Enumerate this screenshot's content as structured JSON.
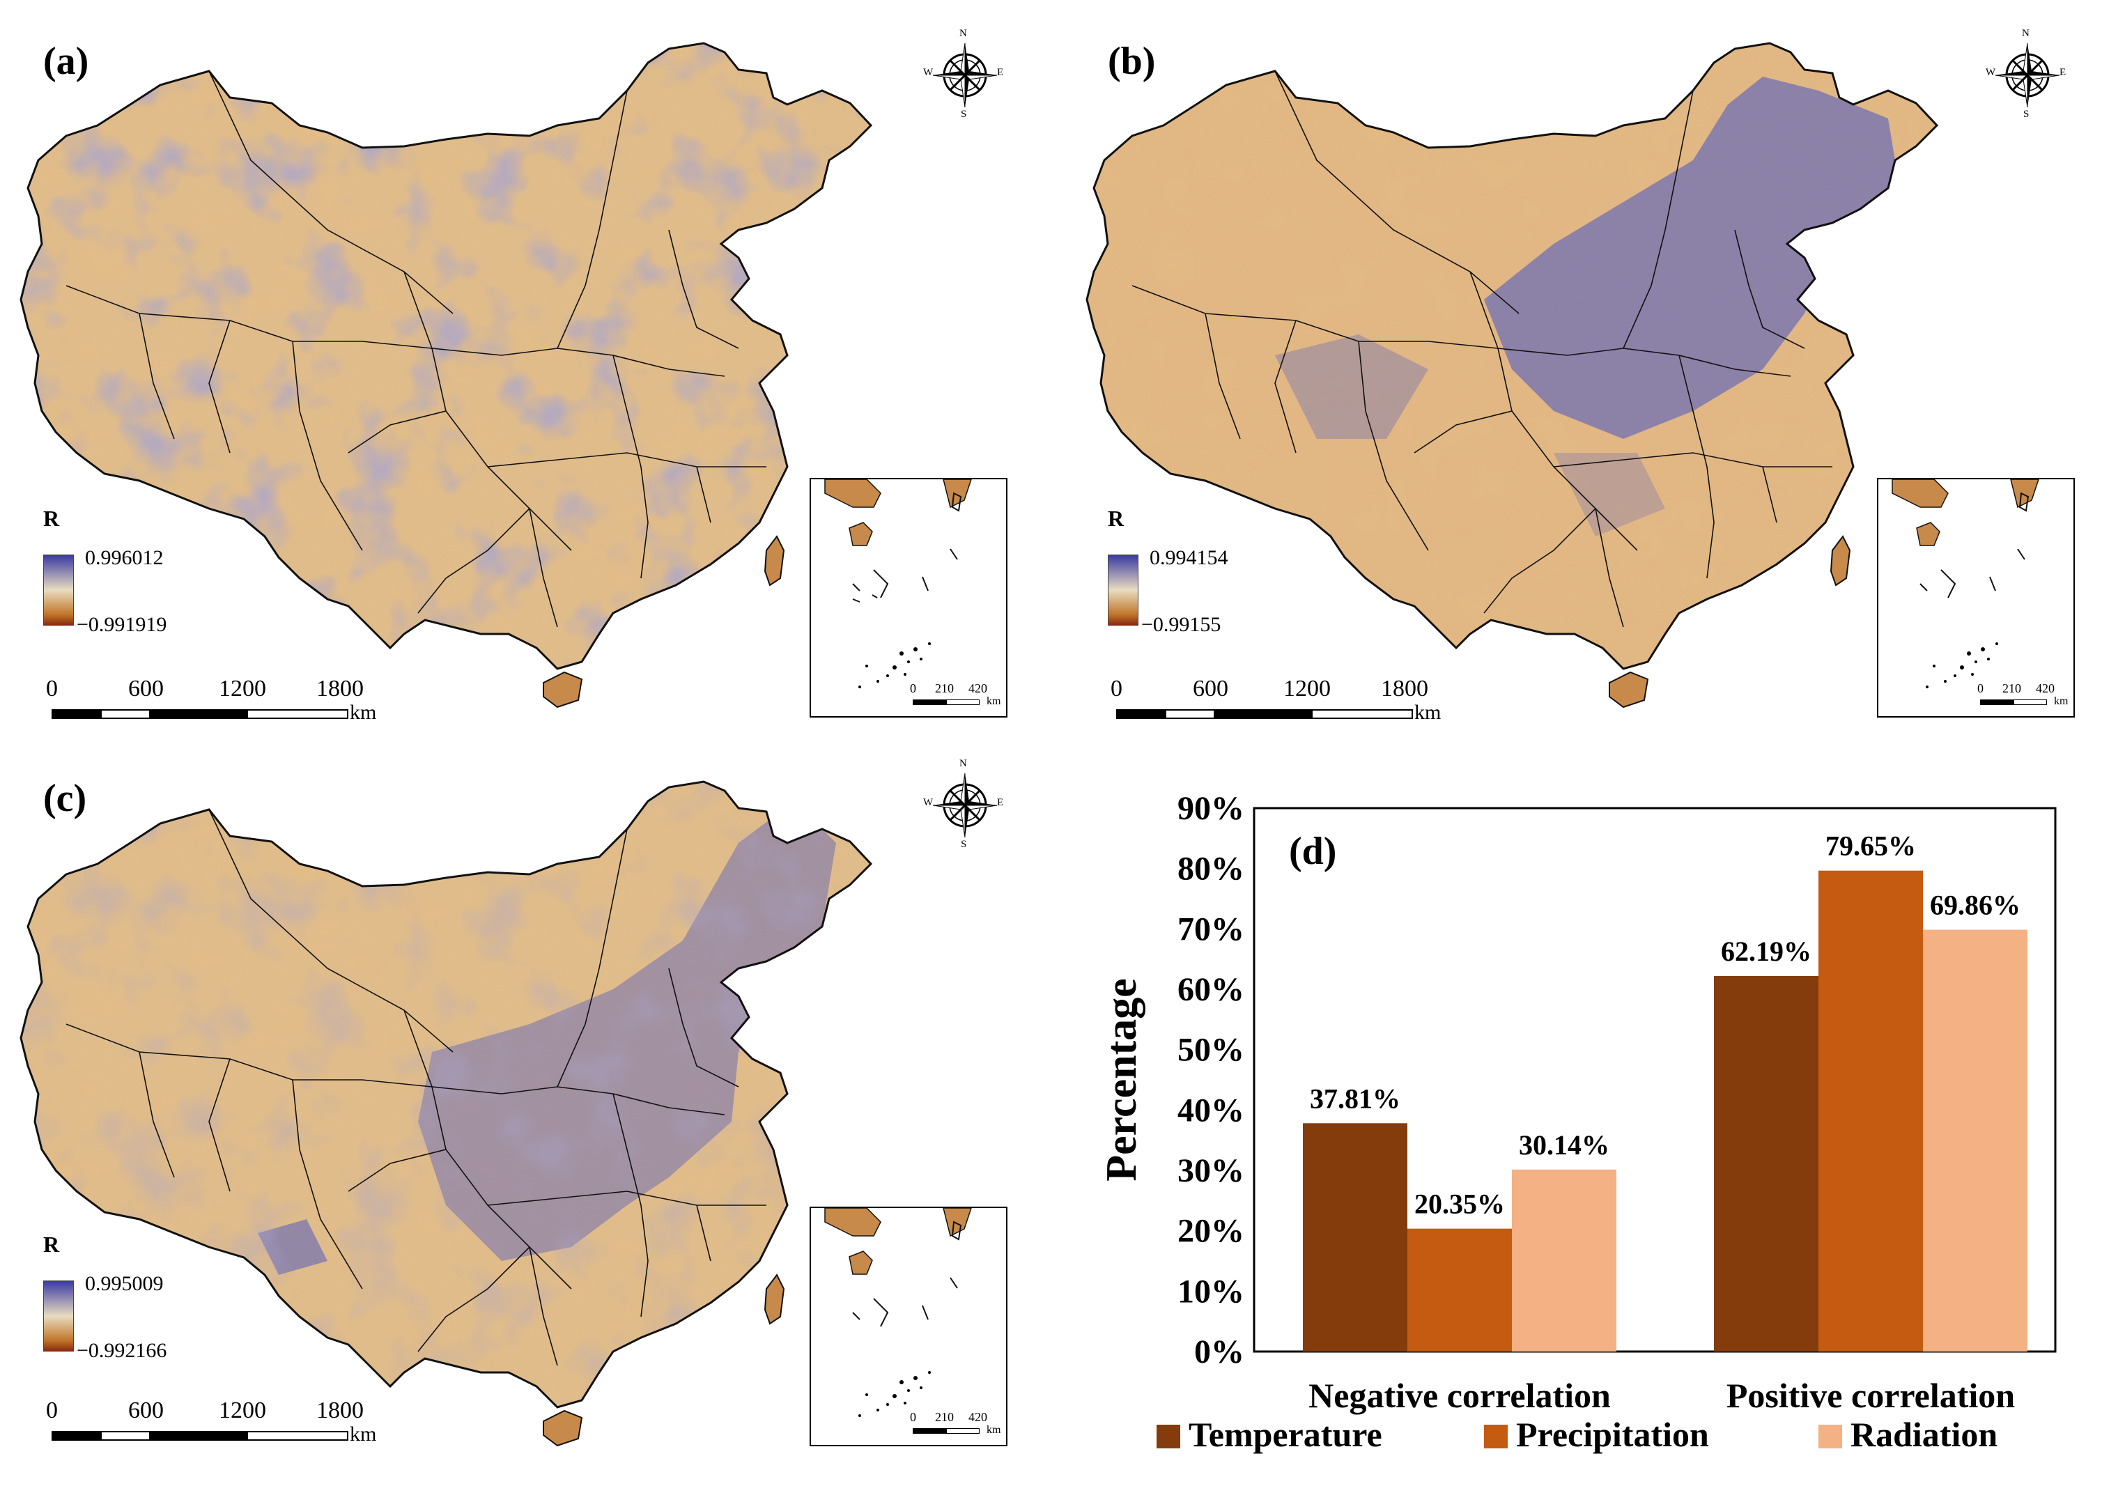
{
  "colors": {
    "temperature": "#843c0c",
    "precipitation": "#c55a11",
    "radiation": "#f4b183",
    "map_high": "#3b3ba3",
    "map_mid": "#e8dcc0",
    "map_low": "#c0762a"
  },
  "compass": {
    "n": "N",
    "s": "S",
    "e": "E",
    "w": "W",
    "icon": "compass-rose-icon"
  },
  "panels": {
    "a": {
      "label": "(a)",
      "legend_title": "R",
      "max": "0.996012",
      "min": "−0.991919",
      "scale": {
        "ticks": [
          "0",
          "600",
          "1200",
          "1800"
        ],
        "unit": "km"
      },
      "inset_scale": {
        "ticks": [
          "0",
          "210",
          "420"
        ],
        "unit": "km"
      }
    },
    "b": {
      "label": "(b)",
      "legend_title": "R",
      "max": "0.994154",
      "min": "−0.99155",
      "scale": {
        "ticks": [
          "0",
          "600",
          "1200",
          "1800"
        ],
        "unit": "km"
      },
      "inset_scale": {
        "ticks": [
          "0",
          "210",
          "420"
        ],
        "unit": "km"
      }
    },
    "c": {
      "label": "(c)",
      "legend_title": "R",
      "max": "0.995009",
      "min": "−0.992166",
      "scale": {
        "ticks": [
          "0",
          "600",
          "1200",
          "1800"
        ],
        "unit": "km"
      },
      "inset_scale": {
        "ticks": [
          "0",
          "210",
          "420"
        ],
        "unit": "km"
      }
    }
  },
  "chart_data": {
    "type": "bar",
    "panel_label": "(d)",
    "categories": [
      "Negative correlation",
      "Positive correlation"
    ],
    "series": [
      {
        "name": "Temperature",
        "values": [
          37.81,
          62.19
        ],
        "labels": [
          "37.81%",
          "62.19%"
        ]
      },
      {
        "name": "Precipitation",
        "values": [
          20.35,
          79.65
        ],
        "labels": [
          "20.35%",
          "79.65%"
        ]
      },
      {
        "name": "Radiation",
        "values": [
          30.14,
          69.86
        ],
        "labels": [
          "30.14%",
          "69.86%"
        ]
      }
    ],
    "ylabel": "Percentage",
    "xlabel": "",
    "ylim": [
      0,
      90
    ],
    "yticks": [
      "0%",
      "10%",
      "20%",
      "30%",
      "40%",
      "50%",
      "60%",
      "70%",
      "80%",
      "90%"
    ],
    "legend_position": "bottom",
    "grid": false
  }
}
